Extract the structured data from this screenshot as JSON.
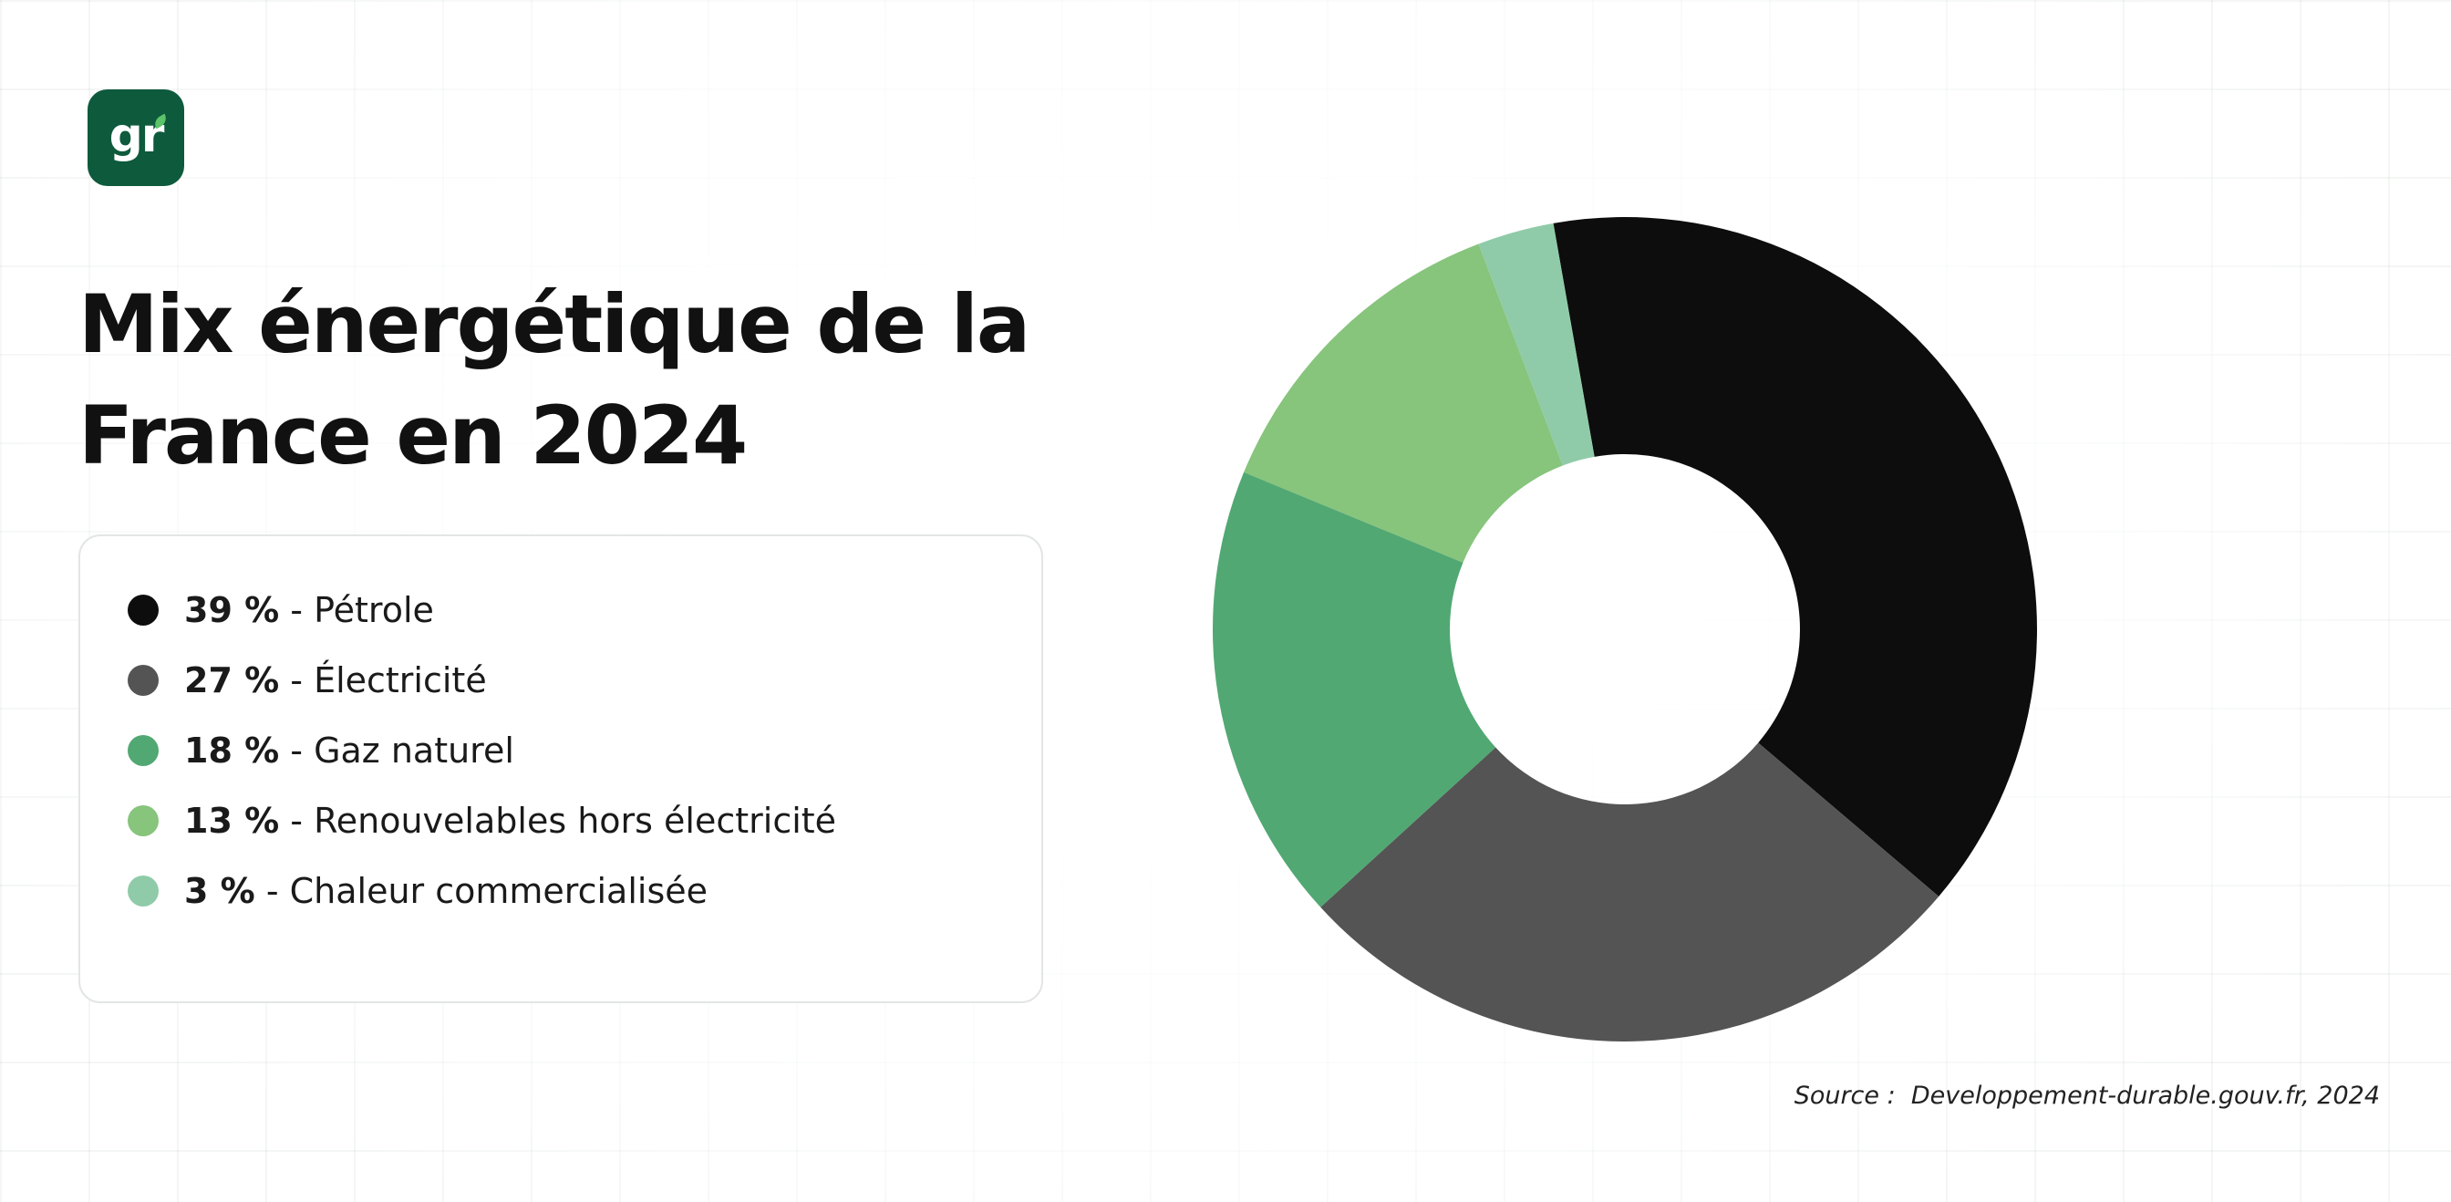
{
  "logo": {
    "text": "gr"
  },
  "title_line1": "Mix énergétique de la",
  "title_line2": "France en 2024",
  "chart_data": {
    "type": "pie",
    "variant": "donut",
    "categories": [
      "Pétrole",
      "Électricité",
      "Gaz naturel",
      "Renouvelables hors électricité",
      "Chaleur commercialisée"
    ],
    "values": [
      39,
      27,
      18,
      13,
      3
    ],
    "value_labels": [
      "39 %",
      "27 %",
      "18 %",
      "13 %",
      "3 %"
    ],
    "colors": [
      "#0d0d0d",
      "#545454",
      "#51a873",
      "#87c47c",
      "#8fcba8"
    ],
    "legend_position": "left"
  },
  "source": {
    "label": "Source :",
    "text": "Developpement-durable.gouv.fr, 2024"
  }
}
